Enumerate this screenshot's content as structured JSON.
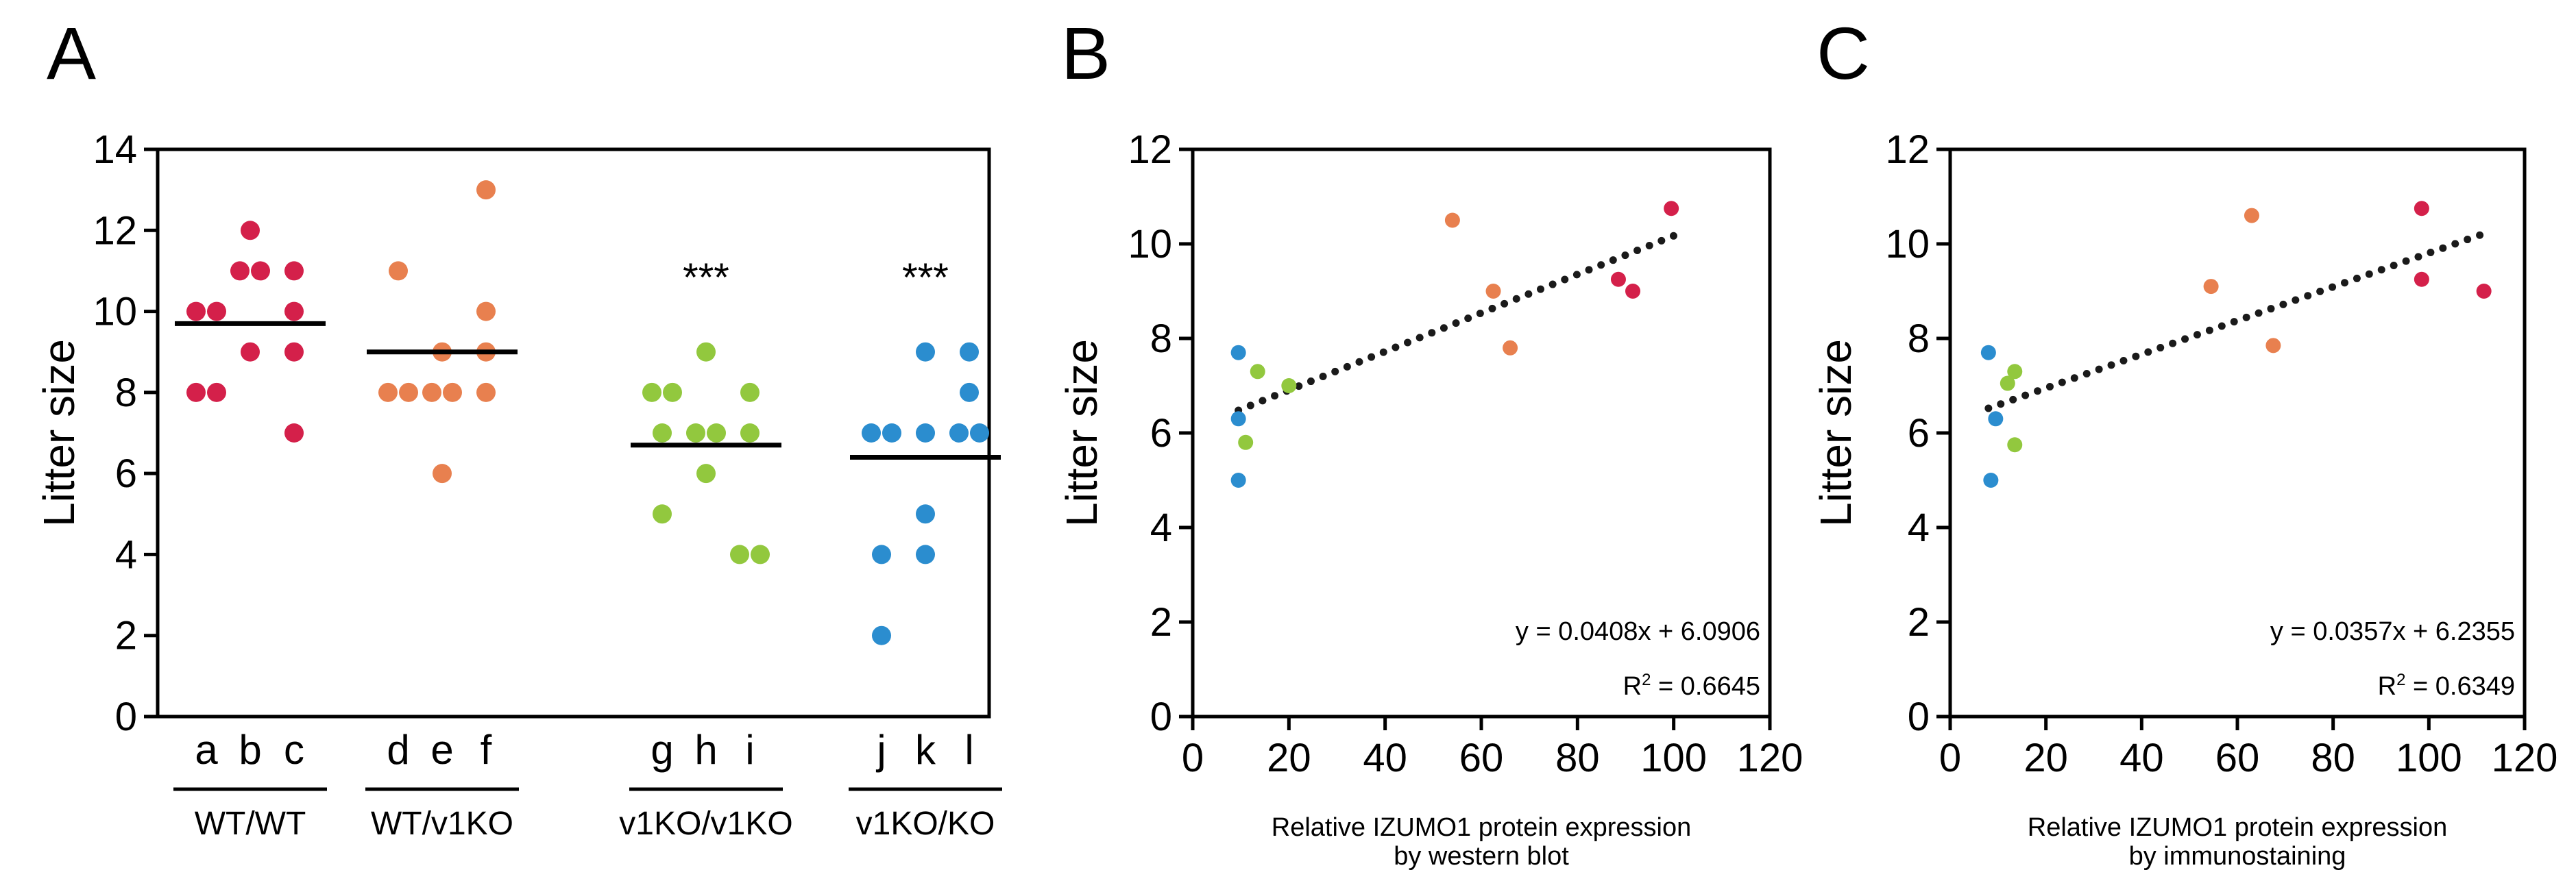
{
  "colors": {
    "red": "#d4204a",
    "orange": "#e8804f",
    "green": "#92c83e",
    "blue": "#2b8dcf",
    "axis": "#000000",
    "trend": "#1a1a1a"
  },
  "chart_data": [
    {
      "panel": "A",
      "type": "scatter",
      "ylabel": "Litter size",
      "ylim": [
        0,
        14
      ],
      "yticks": [
        0,
        2,
        4,
        6,
        8,
        10,
        12,
        14
      ],
      "groups": [
        {
          "name": "WT/WT",
          "color": "red",
          "mean": 9.7,
          "sig": "",
          "males": [
            "a",
            "b",
            "c"
          ],
          "points": [
            [
              0,
              8
            ],
            [
              0,
              8
            ],
            [
              0,
              10
            ],
            [
              0,
              10
            ],
            [
              1,
              9
            ],
            [
              1,
              11
            ],
            [
              1,
              11
            ],
            [
              1,
              12
            ],
            [
              2,
              7
            ],
            [
              2,
              9
            ],
            [
              2,
              10
            ],
            [
              2,
              11
            ]
          ]
        },
        {
          "name": "WT/v1KO",
          "color": "orange",
          "mean": 9.0,
          "sig": "",
          "males": [
            "d",
            "e",
            "f"
          ],
          "points": [
            [
              0,
              8
            ],
            [
              0,
              8
            ],
            [
              0,
              11
            ],
            [
              1,
              6
            ],
            [
              1,
              8
            ],
            [
              1,
              8
            ],
            [
              1,
              9
            ],
            [
              2,
              8
            ],
            [
              2,
              9
            ],
            [
              2,
              10
            ],
            [
              2,
              13
            ]
          ]
        },
        {
          "name": "v1KO/v1KO",
          "color": "green",
          "mean": 6.7,
          "sig": "***",
          "males": [
            "g",
            "h",
            "i"
          ],
          "points": [
            [
              0,
              5
            ],
            [
              0,
              7
            ],
            [
              0,
              8
            ],
            [
              0,
              8
            ],
            [
              1,
              6
            ],
            [
              1,
              7
            ],
            [
              1,
              7
            ],
            [
              1,
              9
            ],
            [
              2,
              4
            ],
            [
              2,
              4
            ],
            [
              2,
              7
            ],
            [
              2,
              8
            ]
          ]
        },
        {
          "name": "v1KO/KO",
          "color": "blue",
          "mean": 6.4,
          "sig": "***",
          "males": [
            "j",
            "k",
            "l"
          ],
          "points": [
            [
              0,
              2
            ],
            [
              0,
              4
            ],
            [
              0,
              7
            ],
            [
              0,
              7
            ],
            [
              1,
              4
            ],
            [
              1,
              5
            ],
            [
              1,
              7
            ],
            [
              1,
              9
            ],
            [
              2,
              7
            ],
            [
              2,
              7
            ],
            [
              2,
              8
            ],
            [
              2,
              9
            ]
          ]
        }
      ]
    },
    {
      "panel": "B",
      "type": "scatter",
      "ylabel": "Litter size",
      "xlabel_line1": "Relative IZUMO1 protein expression",
      "xlabel_line2": "by western blot",
      "xlim": [
        0,
        120
      ],
      "ylim": [
        0,
        12
      ],
      "xticks": [
        0,
        20,
        40,
        60,
        80,
        100,
        120
      ],
      "yticks": [
        0,
        2,
        4,
        6,
        8,
        10,
        12
      ],
      "points": [
        {
          "x": 9.5,
          "y": 7.7,
          "color": "blue"
        },
        {
          "x": 9.5,
          "y": 6.3,
          "color": "blue"
        },
        {
          "x": 9.5,
          "y": 5.0,
          "color": "blue"
        },
        {
          "x": 11.0,
          "y": 5.8,
          "color": "green"
        },
        {
          "x": 13.5,
          "y": 7.3,
          "color": "green"
        },
        {
          "x": 20.0,
          "y": 7.0,
          "color": "green"
        },
        {
          "x": 54.0,
          "y": 10.5,
          "color": "orange"
        },
        {
          "x": 62.5,
          "y": 9.0,
          "color": "orange"
        },
        {
          "x": 66.0,
          "y": 7.8,
          "color": "orange"
        },
        {
          "x": 88.5,
          "y": 9.25,
          "color": "red"
        },
        {
          "x": 91.5,
          "y": 9.0,
          "color": "red"
        },
        {
          "x": 99.5,
          "y": 10.75,
          "color": "red"
        }
      ],
      "trend": {
        "slope": 0.0408,
        "intercept": 6.0906,
        "x_range": [
          9.5,
          100
        ]
      },
      "equation": "y = 0.0408x + 6.0906",
      "r2_label": "R",
      "r2_sup": "2",
      "r2_value": " = 0.6645"
    },
    {
      "panel": "C",
      "type": "scatter",
      "ylabel": "Litter size",
      "xlabel_line1": "Relative IZUMO1 protein expression",
      "xlabel_line2": "by immunostaining",
      "xlim": [
        0,
        120
      ],
      "ylim": [
        0,
        12
      ],
      "xticks": [
        0,
        20,
        40,
        60,
        80,
        100,
        120
      ],
      "yticks": [
        0,
        2,
        4,
        6,
        8,
        10,
        12
      ],
      "points": [
        {
          "x": 8.0,
          "y": 7.7,
          "color": "blue"
        },
        {
          "x": 9.5,
          "y": 6.3,
          "color": "blue"
        },
        {
          "x": 8.5,
          "y": 5.0,
          "color": "blue"
        },
        {
          "x": 12.0,
          "y": 7.05,
          "color": "green"
        },
        {
          "x": 13.5,
          "y": 7.3,
          "color": "green"
        },
        {
          "x": 13.5,
          "y": 5.75,
          "color": "green"
        },
        {
          "x": 54.5,
          "y": 9.1,
          "color": "orange"
        },
        {
          "x": 63.0,
          "y": 10.6,
          "color": "orange"
        },
        {
          "x": 67.5,
          "y": 7.85,
          "color": "orange"
        },
        {
          "x": 98.5,
          "y": 10.75,
          "color": "red"
        },
        {
          "x": 98.5,
          "y": 9.25,
          "color": "red"
        },
        {
          "x": 111.5,
          "y": 9.0,
          "color": "red"
        }
      ],
      "trend": {
        "slope": 0.0357,
        "intercept": 6.2355,
        "x_range": [
          8,
          111
        ]
      },
      "equation": "y = 0.0357x + 6.2355",
      "r2_label": "R",
      "r2_sup": "2",
      "r2_value": " = 0.6349"
    }
  ],
  "panel_labels": [
    "A",
    "B",
    "C"
  ]
}
